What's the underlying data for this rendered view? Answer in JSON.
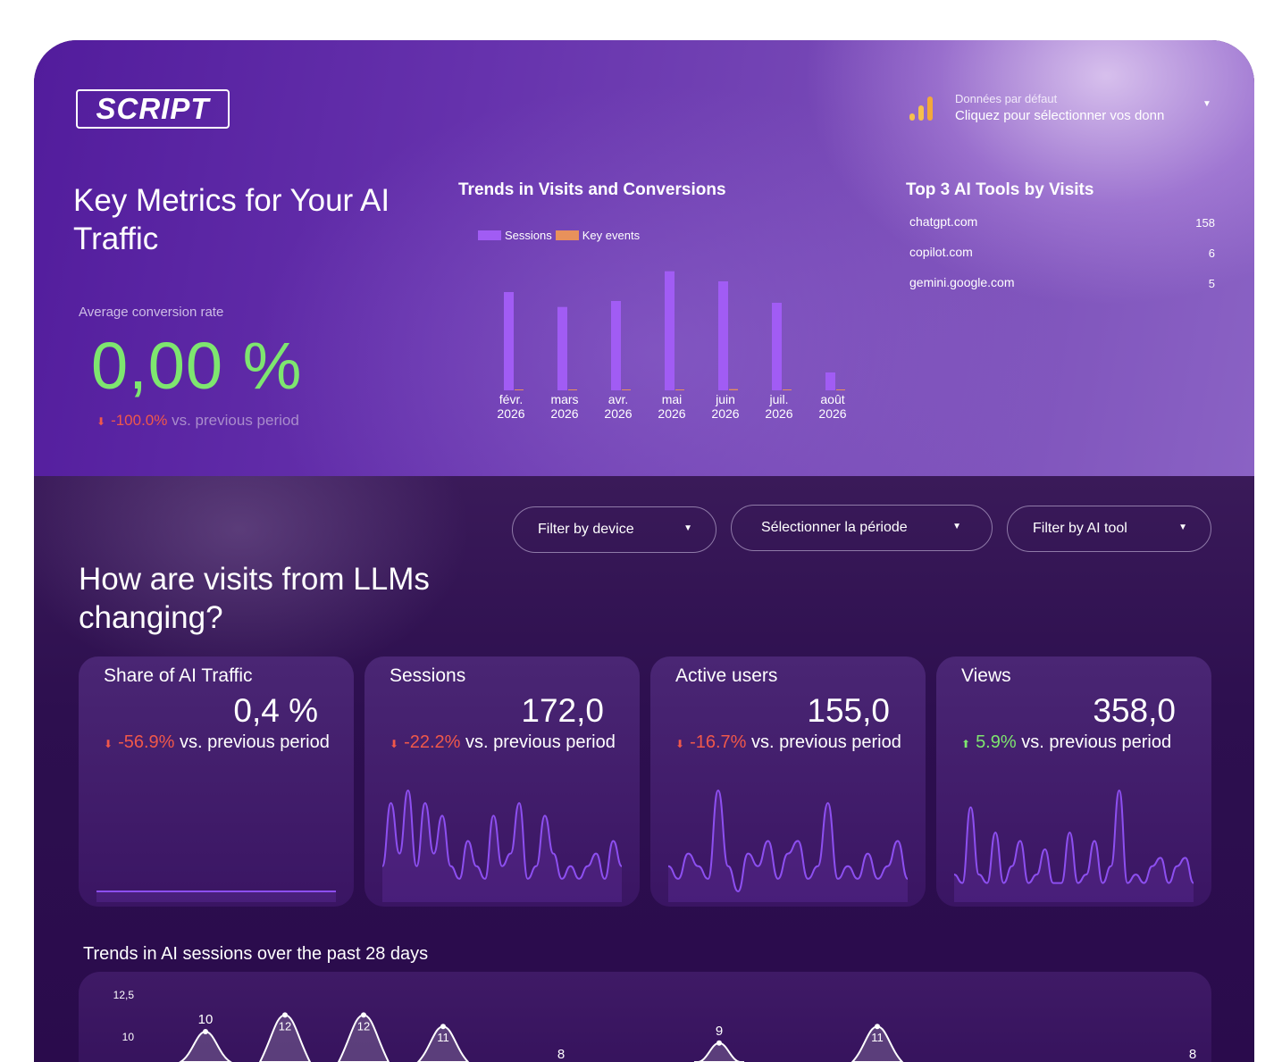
{
  "brand": {
    "logo": "SCRIPT"
  },
  "data_source": {
    "label": "Données par défaut",
    "value": "Cliquez pour sélectionner vos donn",
    "icon": "bar-chart-icon"
  },
  "key_metrics": {
    "title": "Key Metrics for Your AI Traffic",
    "avg_conversion": {
      "label": "Average conversion rate",
      "value": "0,00 %",
      "delta": "-100.0%",
      "delta_suffix": " vs. previous period"
    }
  },
  "trend_chart": {
    "title": "Trends in Visits and Conversions",
    "legend": [
      "Sessions",
      "Key events"
    ],
    "colors": {
      "sessions": "#a15cf4",
      "key_events": "#e8915b"
    },
    "chart_data": {
      "type": "bar",
      "categories": [
        [
          "févr.",
          "2026"
        ],
        [
          "mars",
          "2026"
        ],
        [
          "avr.",
          "2026"
        ],
        [
          "mai",
          "2026"
        ],
        [
          "juin",
          "2026"
        ],
        [
          "juil.",
          "2026"
        ],
        [
          "août",
          "2026"
        ]
      ],
      "series": [
        {
          "name": "Sessions",
          "values": [
            165,
            140,
            150,
            200,
            183,
            147,
            30
          ]
        },
        {
          "name": "Key events",
          "values": [
            1,
            0,
            0,
            1,
            2,
            0,
            0
          ]
        }
      ],
      "ylim": [
        0,
        210
      ]
    }
  },
  "top3": {
    "title": "Top 3 AI Tools by Visits",
    "rows": [
      {
        "name": "chatgpt.com",
        "value": "158"
      },
      {
        "name": "copilot.com",
        "value": "6"
      },
      {
        "name": "gemini.google.com",
        "value": "5"
      }
    ]
  },
  "filters": {
    "device": "Filter by device",
    "period": "Sélectionner la période",
    "ai_tool": "Filter by AI tool"
  },
  "llm_section": {
    "title": "How are visits from LLMs changing?"
  },
  "cards": [
    {
      "title": "Share of AI Traffic",
      "value": "0,4 %",
      "delta": "-56.9%",
      "direction": "down",
      "suffix": " vs. previous period",
      "spark": [
        0,
        0,
        0,
        0,
        0,
        0,
        0,
        0,
        0,
        0,
        0,
        0,
        0,
        0,
        0,
        0,
        0,
        0,
        0,
        0
      ]
    },
    {
      "title": "Sessions",
      "value": "172,0",
      "delta": "-22.2%",
      "direction": "down",
      "suffix": " vs. previous period",
      "spark": [
        2,
        7,
        3,
        8,
        2,
        7,
        3,
        6,
        2,
        1,
        4,
        2,
        1,
        6,
        2,
        3,
        7,
        1,
        2,
        6,
        3,
        1,
        2,
        1,
        2,
        3,
        1,
        4,
        2
      ]
    },
    {
      "title": "Active users",
      "value": "155,0",
      "delta": "-16.7%",
      "direction": "down",
      "suffix": " vs. previous period",
      "spark": [
        2,
        1,
        3,
        2,
        1,
        8,
        2,
        0,
        3,
        2,
        4,
        1,
        3,
        4,
        1,
        2,
        7,
        1,
        2,
        1,
        3,
        1,
        2,
        4,
        1
      ]
    },
    {
      "title": "Views",
      "value": "358,0",
      "delta": "5.9%",
      "direction": "up",
      "suffix": " vs. previous period",
      "spark": [
        2,
        1,
        10,
        2,
        1,
        7,
        1,
        3,
        6,
        1,
        2,
        5,
        1,
        1,
        7,
        1,
        2,
        6,
        1,
        3,
        12,
        1,
        2,
        1,
        3,
        4,
        1,
        3,
        4,
        1
      ]
    }
  ],
  "sessions28": {
    "title": "Trends in AI sessions over the past 28 days",
    "chart_data": {
      "type": "area",
      "yticks": [
        "12,5",
        "10"
      ],
      "ylim": [
        0,
        12.5
      ],
      "points": [
        {
          "label": "10",
          "value": 10
        },
        {
          "label": "12",
          "value": 12
        },
        {
          "label": "12",
          "value": 12
        },
        {
          "label": "11",
          "value": 11
        },
        {
          "label": "8",
          "value": 8
        },
        {
          "label": "9",
          "value": 9
        },
        {
          "label": "11",
          "value": 11
        },
        {
          "label": "8",
          "value": 8
        }
      ]
    }
  }
}
